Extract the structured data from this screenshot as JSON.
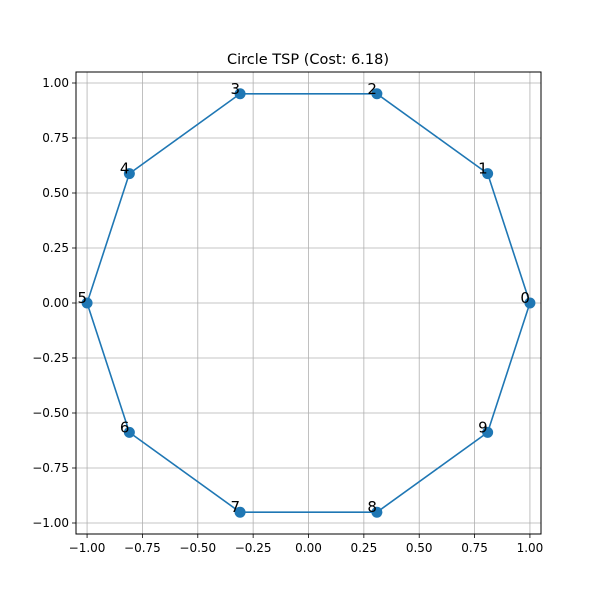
{
  "chart_data": {
    "type": "line",
    "title": "Circle TSP (Cost: 6.18)",
    "xlabel": "",
    "ylabel": "",
    "xlim": [
      -1.05,
      1.05
    ],
    "ylim": [
      -1.05,
      1.05
    ],
    "grid": true,
    "x_ticks": [
      -1.0,
      -0.75,
      -0.5,
      -0.25,
      0.0,
      0.25,
      0.5,
      0.75,
      1.0
    ],
    "x_tick_labels": [
      "−1.00",
      "−0.75",
      "−0.50",
      "−0.25",
      "0.00",
      "0.25",
      "0.50",
      "0.75",
      "1.00"
    ],
    "y_ticks": [
      -1.0,
      -0.75,
      -0.5,
      -0.25,
      0.0,
      0.25,
      0.5,
      0.75,
      1.0
    ],
    "y_tick_labels": [
      "−1.00",
      "−0.75",
      "−0.50",
      "−0.25",
      "0.00",
      "0.25",
      "0.50",
      "0.75",
      "1.00"
    ],
    "points": [
      {
        "label": "0",
        "x": 1.0,
        "y": 0.0
      },
      {
        "label": "1",
        "x": 0.809,
        "y": 0.588
      },
      {
        "label": "2",
        "x": 0.309,
        "y": 0.951
      },
      {
        "label": "3",
        "x": -0.309,
        "y": 0.951
      },
      {
        "label": "4",
        "x": -0.809,
        "y": 0.588
      },
      {
        "label": "5",
        "x": -1.0,
        "y": 0.0
      },
      {
        "label": "6",
        "x": -0.809,
        "y": -0.588
      },
      {
        "label": "7",
        "x": -0.309,
        "y": -0.951
      },
      {
        "label": "8",
        "x": 0.309,
        "y": -0.951
      },
      {
        "label": "9",
        "x": 0.809,
        "y": -0.588
      }
    ],
    "route": [
      0,
      1,
      2,
      3,
      4,
      5,
      6,
      7,
      8,
      9,
      0
    ],
    "color": "#1f77b4"
  }
}
